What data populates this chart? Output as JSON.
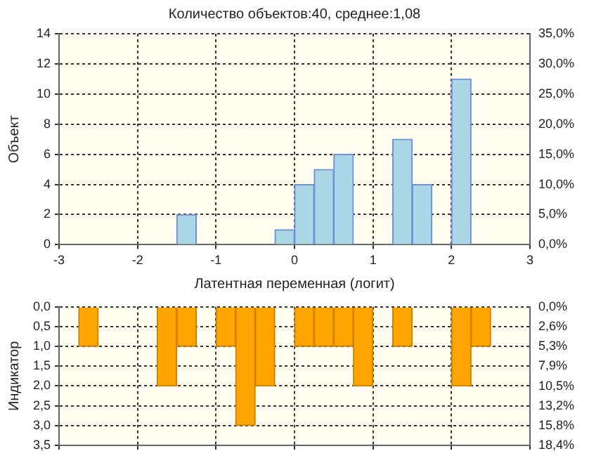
{
  "chart_data": [
    {
      "type": "histogram",
      "title": "Количество объектов:40, среднее:1,08",
      "xlabel": "Латентная переменная (логит)",
      "ylabel": "Объект",
      "bins": [
        -3,
        -2.75,
        -2.5,
        -2.25,
        -2,
        -1.75,
        -1.5,
        -1.25,
        -1,
        -0.75,
        -0.5,
        -0.25,
        0,
        0.25,
        0.5,
        0.75,
        1,
        1.25,
        1.5,
        1.75,
        2,
        2.25,
        2.5,
        2.75,
        3
      ],
      "values": [
        0,
        0,
        0,
        0,
        0,
        0,
        2,
        0,
        0,
        0,
        0,
        1,
        4,
        5,
        6,
        0,
        0,
        7,
        4,
        0,
        11,
        0,
        0,
        0
      ],
      "color": "#aad6e6",
      "xlim": [
        -3,
        3
      ],
      "xticks": [
        -3,
        -2,
        -1,
        0,
        1,
        2,
        3
      ],
      "ylim": [
        0,
        14
      ],
      "yticks": [
        0,
        2,
        4,
        6,
        8,
        10,
        12,
        14
      ],
      "y2lim": [
        0,
        35
      ],
      "y2ticks": [
        {
          "value": 0,
          "label": "0,0%"
        },
        {
          "value": 5,
          "label": "5,0%"
        },
        {
          "value": 10,
          "label": "10,0%"
        },
        {
          "value": 15,
          "label": "15,0%"
        },
        {
          "value": 20,
          "label": "20,0%"
        },
        {
          "value": 25,
          "label": "25,0%"
        },
        {
          "value": 30,
          "label": "30,0%"
        },
        {
          "value": 35,
          "label": "35,0%"
        }
      ],
      "grid": true
    },
    {
      "type": "histogram",
      "ylabel": "Индикатор",
      "bins": [
        -3,
        -2.75,
        -2.5,
        -2.25,
        -2,
        -1.75,
        -1.5,
        -1.25,
        -1,
        -0.75,
        -0.5,
        -0.25,
        0,
        0.25,
        0.5,
        0.75,
        1,
        1.25,
        1.5,
        1.75,
        2,
        2.25,
        2.5,
        2.75,
        3
      ],
      "values": [
        0,
        1,
        0,
        0,
        0,
        2,
        1,
        0,
        1,
        3,
        2,
        0,
        1,
        1,
        1,
        2,
        0,
        1,
        0,
        0,
        2,
        1,
        0,
        0
      ],
      "color": "#ffa500",
      "xlim": [
        -3,
        3
      ],
      "xticks": [
        -3,
        -2,
        -1,
        0,
        1,
        2,
        3
      ],
      "ylim": [
        3.5,
        0
      ],
      "yticks": [
        {
          "value": 0,
          "label": "0,0"
        },
        {
          "value": 0.5,
          "label": "0,5"
        },
        {
          "value": 1,
          "label": "1,0"
        },
        {
          "value": 1.5,
          "label": "1,5"
        },
        {
          "value": 2,
          "label": "2,0"
        },
        {
          "value": 2.5,
          "label": "2,5"
        },
        {
          "value": 3,
          "label": "3,0"
        },
        {
          "value": 3.5,
          "label": "3,5"
        }
      ],
      "y2lim": [
        18.42,
        0
      ],
      "y2ticks": [
        {
          "value": 0,
          "label": "0,0%"
        },
        {
          "value": 2.63,
          "label": "2,6%"
        },
        {
          "value": 5.26,
          "label": "5,3%"
        },
        {
          "value": 7.89,
          "label": "7,9%"
        },
        {
          "value": 10.53,
          "label": "10,5%"
        },
        {
          "value": 13.16,
          "label": "13,2%"
        },
        {
          "value": 15.79,
          "label": "15,8%"
        },
        {
          "value": 18.42,
          "label": "18,4%"
        }
      ],
      "grid": true,
      "tick_labels": "y"
    }
  ]
}
